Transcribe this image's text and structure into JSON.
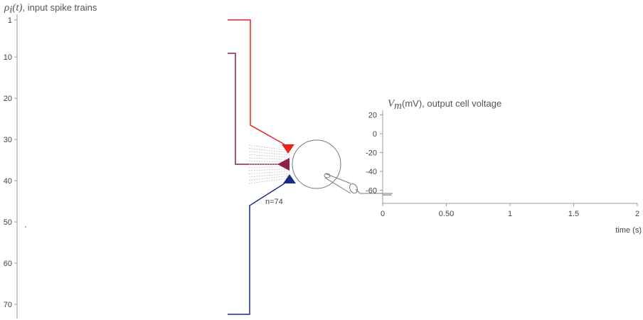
{
  "input_panel": {
    "title_symbol": "ρ",
    "title_sub": "i",
    "title_arg": "(t)",
    "title_text": ", input spike trains",
    "ticks": [
      {
        "label": "1",
        "value": 1
      },
      {
        "label": "10",
        "value": 10
      },
      {
        "label": "20",
        "value": 20
      },
      {
        "label": "30",
        "value": 30
      },
      {
        "label": "40",
        "value": 40
      },
      {
        "label": "50",
        "value": 50
      },
      {
        "label": "60",
        "value": 60
      },
      {
        "label": "70",
        "value": 70
      }
    ],
    "y_min": 1,
    "y_max": 74
  },
  "neuron": {
    "synapse_count_label": "n=74",
    "colors": {
      "excitatory": "#e8241c",
      "mixed": "#8e2048",
      "inhibitory": "#1c2a8a",
      "fan_lines": "#b9b6c8",
      "cell": "#777777"
    }
  },
  "output_panel": {
    "title_symbol": "V",
    "title_sub": "m",
    "title_text": "(mV), output cell voltage",
    "x_label": "time (s)",
    "y_ticks": [
      {
        "label": "20",
        "value": 20
      },
      {
        "label": "0",
        "value": 0
      },
      {
        "label": "-20",
        "value": -20
      },
      {
        "label": "-40",
        "value": -40
      },
      {
        "label": "-60",
        "value": -60
      }
    ],
    "x_ticks": [
      {
        "label": "0",
        "value": 0
      },
      {
        "label": "0.50",
        "value": 0.5
      },
      {
        "label": "1",
        "value": 1
      },
      {
        "label": "1.5",
        "value": 1.5
      },
      {
        "label": "2",
        "value": 2
      }
    ],
    "ylim": [
      -70,
      25
    ],
    "xlim": [
      0,
      2
    ],
    "trace": {
      "x": [
        0,
        0.07
      ],
      "y": [
        -65,
        -65
      ]
    }
  }
}
